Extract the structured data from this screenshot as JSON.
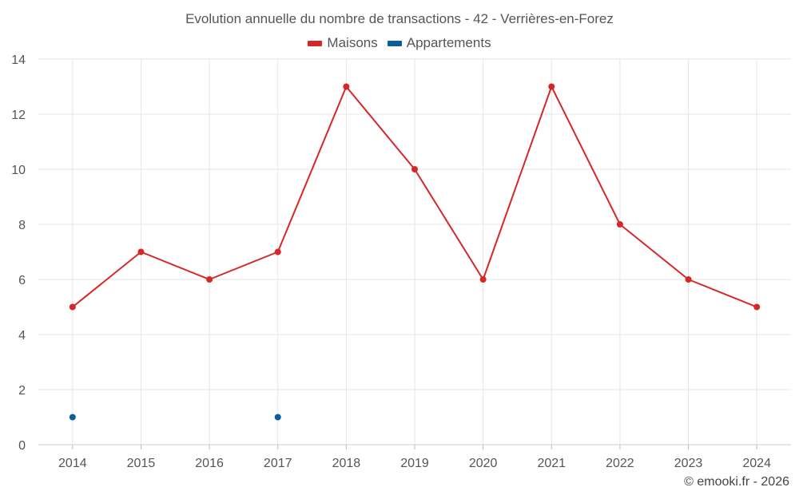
{
  "chart_data": {
    "type": "line",
    "title": "Evolution annuelle du nombre de transactions - 42 - Verrières-en-Forez",
    "xlabel": "",
    "ylabel": "",
    "categories": [
      "2014",
      "2015",
      "2016",
      "2017",
      "2018",
      "2019",
      "2020",
      "2021",
      "2022",
      "2023",
      "2024"
    ],
    "ylim": [
      0,
      14
    ],
    "yticks": [
      0,
      2,
      4,
      6,
      8,
      10,
      12,
      14
    ],
    "grid": true,
    "legend_position": "top-center",
    "series": [
      {
        "name": "Maisons",
        "color": "#d62728",
        "values": [
          5,
          7,
          6,
          7,
          13,
          10,
          6,
          13,
          8,
          6,
          5
        ]
      },
      {
        "name": "Appartements",
        "color": "#0b5f99",
        "values": [
          1,
          null,
          null,
          1,
          null,
          null,
          null,
          null,
          null,
          null,
          null
        ]
      }
    ]
  },
  "credit": "© emooki.fr - 2026"
}
